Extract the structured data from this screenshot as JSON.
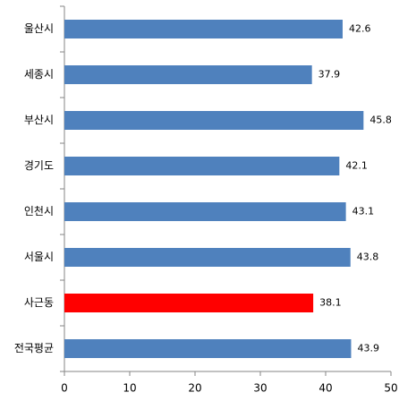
{
  "chart_data": {
    "type": "hbar",
    "categories": [
      "울산시",
      "세종시",
      "부산시",
      "경기도",
      "인천시",
      "서울시",
      "사근동",
      "전국평균"
    ],
    "values": [
      42.6,
      37.9,
      45.8,
      42.1,
      43.1,
      43.8,
      38.1,
      43.9
    ],
    "colors": [
      "#4f81bd",
      "#4f81bd",
      "#4f81bd",
      "#4f81bd",
      "#4f81bd",
      "#4f81bd",
      "#ff0000",
      "#4f81bd"
    ],
    "xlim": [
      0,
      50
    ],
    "xticks": [
      0,
      10,
      20,
      30,
      40,
      50
    ],
    "grid": false
  }
}
